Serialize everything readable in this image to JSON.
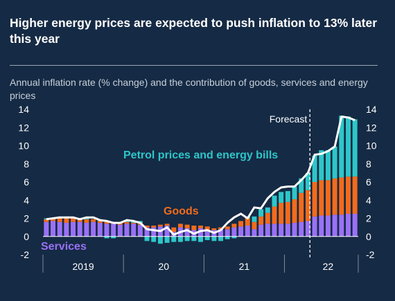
{
  "header": {
    "title": "Higher energy prices are expected to push inflation to 13% later this year",
    "subtitle": "Annual inflation rate (% change) and the contribution of goods, services and energy prices"
  },
  "colors": {
    "background": "#152a44",
    "services": "#9a71f6",
    "goods": "#f26b1c",
    "energy": "#2ec6c9",
    "line": "#ffffff"
  },
  "chart_data": {
    "type": "bar",
    "stacked": true,
    "ylim": [
      -2,
      14
    ],
    "yticks": [
      -2,
      0,
      2,
      4,
      6,
      8,
      10,
      12,
      14
    ],
    "x_group_labels": [
      "2019",
      "20",
      "21",
      "22"
    ],
    "grid": false,
    "forecast_label": "Forecast",
    "forecast_start_index": 40,
    "series": [
      {
        "name": "Services",
        "values": [
          1.6,
          1.7,
          1.6,
          1.5,
          1.6,
          1.6,
          1.5,
          1.6,
          1.5,
          1.4,
          1.4,
          1.3,
          1.4,
          1.4,
          1.3,
          1.0,
          1.0,
          1.1,
          1.2,
          0.5,
          1.0,
          0.9,
          0.7,
          0.9,
          0.6,
          0.7,
          0.8,
          0.8,
          1.0,
          1.1,
          1.2,
          0.8,
          1.3,
          1.4,
          1.4,
          1.4,
          1.4,
          1.5,
          1.6,
          1.7,
          2.2,
          2.3,
          2.3,
          2.4,
          2.4,
          2.5,
          2.5
        ]
      },
      {
        "name": "Goods",
        "values": [
          0.3,
          0.3,
          0.4,
          0.6,
          0.4,
          0.3,
          0.4,
          0.3,
          0.2,
          0.2,
          0.2,
          0.2,
          0.2,
          0.1,
          0.2,
          0.2,
          0.2,
          0.2,
          0.2,
          0.5,
          0.4,
          0.4,
          0.5,
          0.3,
          0.5,
          0.2,
          0.2,
          0.3,
          0.4,
          0.6,
          0.8,
          0.8,
          0.9,
          1.2,
          1.9,
          2.3,
          2.4,
          2.6,
          3.2,
          3.4,
          3.8,
          3.9,
          3.9,
          4.0,
          4.1,
          4.1,
          4.1
        ]
      },
      {
        "name": "Petrol prices and energy bills",
        "values": [
          0.1,
          0.0,
          0.2,
          0.1,
          0.1,
          0.0,
          0.1,
          0.0,
          0.1,
          -0.2,
          -0.2,
          0.0,
          0.2,
          0.1,
          0.2,
          -0.5,
          -0.6,
          -0.8,
          -0.7,
          -0.6,
          -0.6,
          -0.5,
          -0.5,
          -0.6,
          -0.4,
          -0.5,
          -0.5,
          -0.3,
          -0.2,
          0.0,
          0.2,
          0.6,
          0.8,
          0.6,
          1.2,
          1.2,
          1.2,
          1.4,
          1.6,
          1.9,
          2.9,
          3.3,
          3.3,
          3.5,
          6.8,
          6.6,
          6.3
        ]
      }
    ],
    "line": {
      "name": "Annual inflation rate",
      "values": [
        1.9,
        2.0,
        2.1,
        2.1,
        2.1,
        1.9,
        2.1,
        2.1,
        1.8,
        1.7,
        1.5,
        1.5,
        1.8,
        1.7,
        1.5,
        0.8,
        0.7,
        0.6,
        1.0,
        0.2,
        0.5,
        0.7,
        0.3,
        0.6,
        0.7,
        0.4,
        0.7,
        1.5,
        2.1,
        2.5,
        2.0,
        3.2,
        3.1,
        4.2,
        4.9,
        5.4,
        5.5,
        5.5,
        6.2,
        7.0,
        9.0,
        9.1,
        9.4,
        9.9,
        13.2,
        13.1,
        12.8
      ]
    }
  }
}
